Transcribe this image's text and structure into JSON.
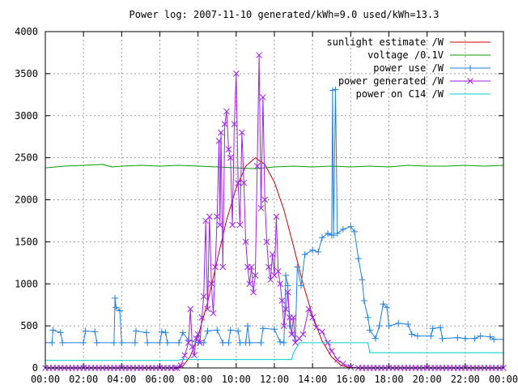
{
  "chart_data": {
    "type": "line",
    "title": "Power log: 2007-11-10 generated/kWh=9.0 used/kWh=13.3",
    "xlabel": "",
    "ylabel": "",
    "xlim": [
      0,
      24
    ],
    "ylim": [
      0,
      4000
    ],
    "x_ticks": [
      "00:00",
      "02:00",
      "04:00",
      "06:00",
      "08:00",
      "10:00",
      "12:00",
      "14:00",
      "16:00",
      "18:00",
      "20:00",
      "22:00",
      "00:00"
    ],
    "y_ticks": [
      0,
      500,
      1000,
      1500,
      2000,
      2500,
      3000,
      3500,
      4000
    ],
    "grid": true,
    "legend_position": "top-right",
    "series": [
      {
        "name": "sunlight estimate /W",
        "color": "#cc0000",
        "marker": "none",
        "points": [
          [
            0,
            0
          ],
          [
            6.9,
            0
          ],
          [
            7.2,
            20
          ],
          [
            7.6,
            140
          ],
          [
            8,
            380
          ],
          [
            8.5,
            780
          ],
          [
            9,
            1280
          ],
          [
            9.5,
            1760
          ],
          [
            10,
            2140
          ],
          [
            10.5,
            2400
          ],
          [
            11,
            2500
          ],
          [
            11.5,
            2420
          ],
          [
            12,
            2210
          ],
          [
            12.5,
            1880
          ],
          [
            13,
            1450
          ],
          [
            13.5,
            1000
          ],
          [
            14,
            620
          ],
          [
            14.5,
            320
          ],
          [
            15,
            130
          ],
          [
            15.5,
            30
          ],
          [
            16,
            0
          ],
          [
            24,
            0
          ]
        ]
      },
      {
        "name": "voltage /0.1V",
        "color": "#00a000",
        "marker": "none",
        "points": [
          [
            0,
            2380
          ],
          [
            1,
            2400
          ],
          [
            2,
            2410
          ],
          [
            3,
            2420
          ],
          [
            3.5,
            2390
          ],
          [
            4,
            2400
          ],
          [
            5,
            2410
          ],
          [
            6,
            2400
          ],
          [
            7,
            2410
          ],
          [
            8,
            2400
          ],
          [
            9,
            2390
          ],
          [
            10,
            2380
          ],
          [
            11,
            2370
          ],
          [
            12,
            2390
          ],
          [
            13,
            2400
          ],
          [
            14,
            2390
          ],
          [
            15,
            2400
          ],
          [
            16,
            2390
          ],
          [
            17,
            2400
          ],
          [
            18,
            2390
          ],
          [
            19,
            2410
          ],
          [
            20,
            2400
          ],
          [
            21,
            2400
          ],
          [
            22,
            2410
          ],
          [
            23,
            2400
          ],
          [
            24,
            2410
          ]
        ]
      },
      {
        "name": "power use /W",
        "color": "#2080e0",
        "marker": "plus",
        "points": [
          [
            0,
            300
          ],
          [
            0.35,
            300
          ],
          [
            0.4,
            450
          ],
          [
            0.8,
            420
          ],
          [
            0.9,
            300
          ],
          [
            2.0,
            300
          ],
          [
            2.1,
            440
          ],
          [
            2.6,
            430
          ],
          [
            2.7,
            300
          ],
          [
            3.6,
            300
          ],
          [
            3.65,
            830
          ],
          [
            3.7,
            720
          ],
          [
            3.9,
            680
          ],
          [
            4.0,
            300
          ],
          [
            4.7,
            300
          ],
          [
            4.75,
            440
          ],
          [
            5.3,
            420
          ],
          [
            5.35,
            300
          ],
          [
            6.0,
            300
          ],
          [
            6.1,
            430
          ],
          [
            6.3,
            420
          ],
          [
            6.4,
            300
          ],
          [
            7.0,
            300
          ],
          [
            7.2,
            420
          ],
          [
            7.5,
            330
          ],
          [
            8.0,
            300
          ],
          [
            8.3,
            300
          ],
          [
            8.5,
            440
          ],
          [
            9.0,
            450
          ],
          [
            9.3,
            300
          ],
          [
            9.6,
            300
          ],
          [
            9.7,
            450
          ],
          [
            10.1,
            440
          ],
          [
            10.2,
            300
          ],
          [
            10.5,
            300
          ],
          [
            10.6,
            500
          ],
          [
            10.7,
            300
          ],
          [
            11.3,
            300
          ],
          [
            11.4,
            470
          ],
          [
            12.0,
            460
          ],
          [
            12.3,
            310
          ],
          [
            12.5,
            300
          ],
          [
            12.6,
            1100
          ],
          [
            12.7,
            980
          ],
          [
            12.8,
            500
          ],
          [
            13.1,
            330
          ],
          [
            13.2,
            1200
          ],
          [
            13.4,
            980
          ],
          [
            13.6,
            1350
          ],
          [
            14.0,
            1400
          ],
          [
            14.3,
            1380
          ],
          [
            14.5,
            1550
          ],
          [
            14.8,
            1600
          ],
          [
            15.0,
            1580
          ],
          [
            15.05,
            3300
          ],
          [
            15.1,
            1580
          ],
          [
            15.2,
            3310
          ],
          [
            15.3,
            1600
          ],
          [
            15.6,
            1650
          ],
          [
            16.0,
            1680
          ],
          [
            16.2,
            1620
          ],
          [
            16.4,
            1300
          ],
          [
            16.6,
            1050
          ],
          [
            16.7,
            800
          ],
          [
            16.9,
            600
          ],
          [
            17.0,
            450
          ],
          [
            17.3,
            350
          ],
          [
            17.5,
            500
          ],
          [
            17.7,
            760
          ],
          [
            17.9,
            720
          ],
          [
            18.0,
            500
          ],
          [
            18.5,
            530
          ],
          [
            19.0,
            520
          ],
          [
            19.2,
            400
          ],
          [
            19.5,
            380
          ],
          [
            20.2,
            380
          ],
          [
            20.3,
            470
          ],
          [
            20.7,
            480
          ],
          [
            20.8,
            350
          ],
          [
            21.6,
            360
          ],
          [
            22.0,
            350
          ],
          [
            22.5,
            350
          ],
          [
            22.8,
            380
          ],
          [
            23.3,
            370
          ],
          [
            23.5,
            340
          ],
          [
            24,
            340
          ]
        ]
      },
      {
        "name": "power generated /W",
        "color": "#a020f0",
        "marker": "cross",
        "points": [
          [
            0,
            0
          ],
          [
            6.9,
            0
          ],
          [
            7.1,
            30
          ],
          [
            7.3,
            150
          ],
          [
            7.5,
            300
          ],
          [
            7.6,
            700
          ],
          [
            7.7,
            250
          ],
          [
            7.8,
            150
          ],
          [
            7.9,
            350
          ],
          [
            8.0,
            400
          ],
          [
            8.1,
            300
          ],
          [
            8.2,
            600
          ],
          [
            8.3,
            850
          ],
          [
            8.4,
            1750
          ],
          [
            8.5,
            700
          ],
          [
            8.6,
            1800
          ],
          [
            8.7,
            1000
          ],
          [
            8.8,
            650
          ],
          [
            8.9,
            1200
          ],
          [
            9.0,
            1800
          ],
          [
            9.1,
            2700
          ],
          [
            9.15,
            1700
          ],
          [
            9.2,
            2800
          ],
          [
            9.3,
            1200
          ],
          [
            9.4,
            2900
          ],
          [
            9.5,
            3050
          ],
          [
            9.6,
            2600
          ],
          [
            9.7,
            2500
          ],
          [
            9.8,
            1700
          ],
          [
            9.9,
            2900
          ],
          [
            10.0,
            3500
          ],
          [
            10.1,
            2200
          ],
          [
            10.2,
            1700
          ],
          [
            10.3,
            2800
          ],
          [
            10.4,
            2200
          ],
          [
            10.5,
            1500
          ],
          [
            10.6,
            1200
          ],
          [
            10.7,
            1000
          ],
          [
            10.8,
            1200
          ],
          [
            10.9,
            900
          ],
          [
            11.0,
            1100
          ],
          [
            11.1,
            2400
          ],
          [
            11.2,
            3720
          ],
          [
            11.3,
            1900
          ],
          [
            11.4,
            3220
          ],
          [
            11.5,
            2000
          ],
          [
            11.6,
            1500
          ],
          [
            11.7,
            1200
          ],
          [
            11.8,
            1050
          ],
          [
            11.9,
            1350
          ],
          [
            12.0,
            1100
          ],
          [
            12.1,
            1800
          ],
          [
            12.2,
            1150
          ],
          [
            12.3,
            1000
          ],
          [
            12.4,
            800
          ],
          [
            12.5,
            500
          ],
          [
            12.6,
            700
          ],
          [
            12.7,
            900
          ],
          [
            12.8,
            600
          ],
          [
            12.9,
            400
          ],
          [
            13.0,
            600
          ],
          [
            13.1,
            300
          ],
          [
            13.3,
            350
          ],
          [
            13.5,
            400
          ],
          [
            13.8,
            700
          ],
          [
            14.0,
            600
          ],
          [
            14.2,
            480
          ],
          [
            14.5,
            430
          ],
          [
            14.8,
            300
          ],
          [
            15.0,
            200
          ],
          [
            15.3,
            100
          ],
          [
            15.6,
            50
          ],
          [
            16.0,
            10
          ],
          [
            16.4,
            0
          ],
          [
            24,
            0
          ]
        ]
      },
      {
        "name": "power on C14 /W",
        "color": "#00cccc",
        "marker": "none",
        "points": [
          [
            0,
            90
          ],
          [
            7.0,
            90
          ],
          [
            7.05,
            100
          ],
          [
            12.9,
            100
          ],
          [
            13.0,
            180
          ],
          [
            13.3,
            300
          ],
          [
            16.9,
            300
          ],
          [
            17.0,
            180
          ],
          [
            24,
            180
          ]
        ]
      }
    ]
  }
}
